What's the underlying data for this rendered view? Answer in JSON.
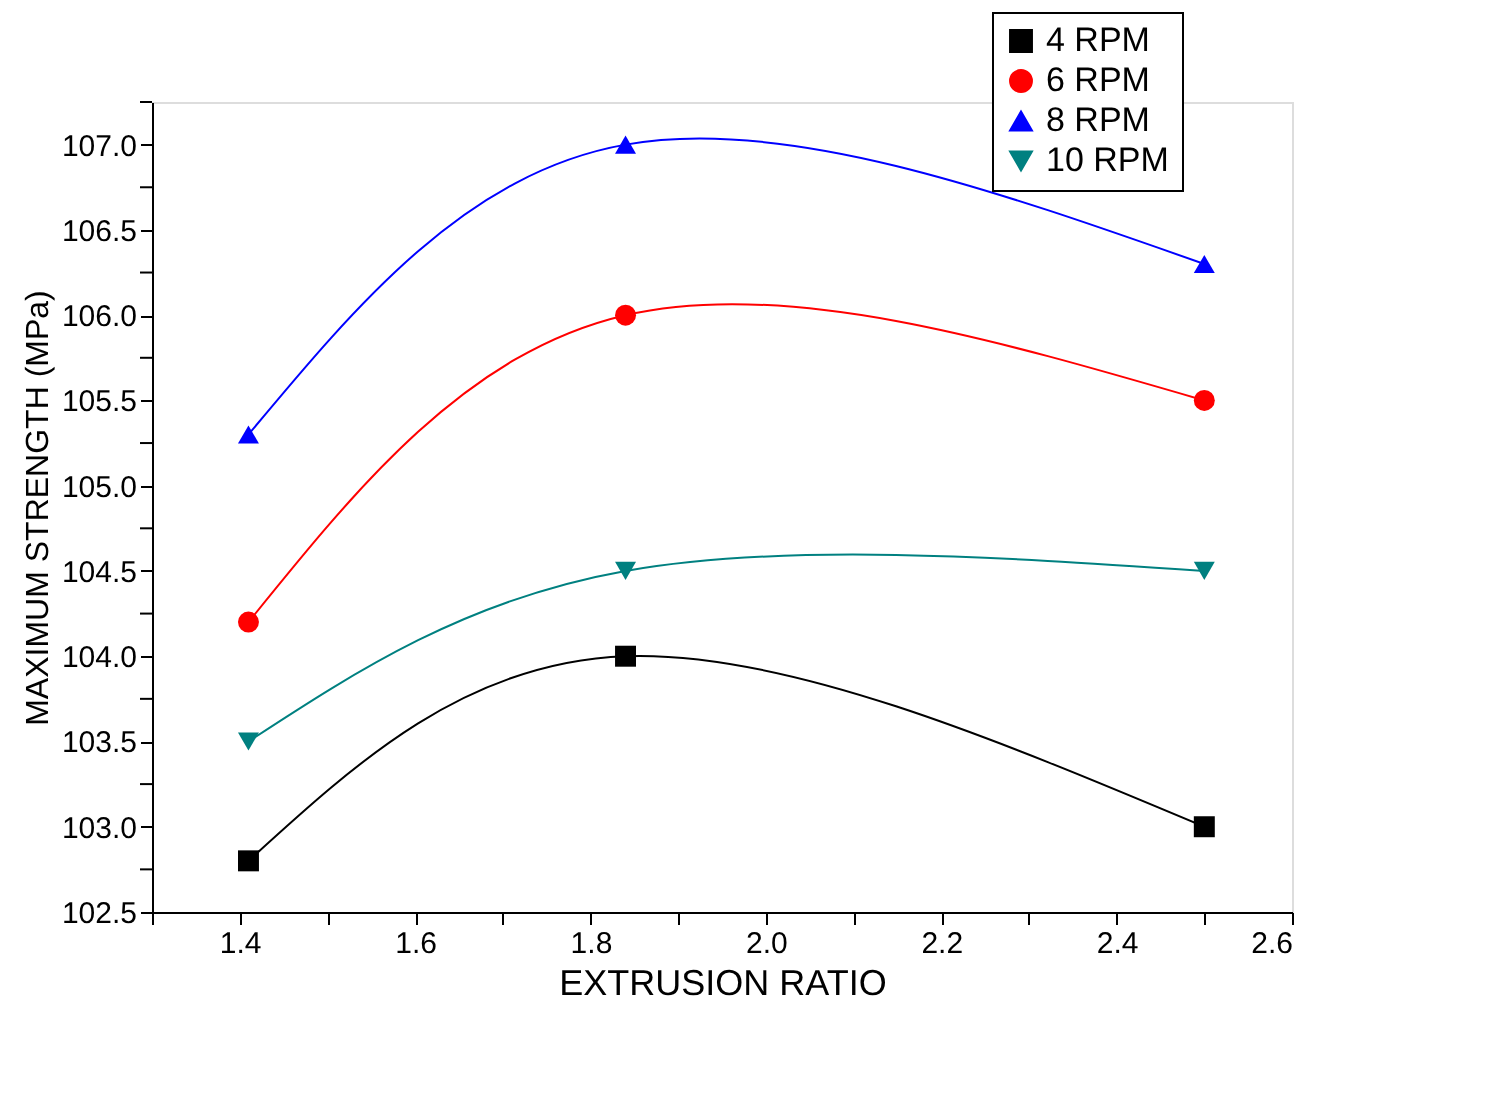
{
  "chart_data": {
    "type": "line",
    "xlabel": "EXTRUSION RATIO",
    "ylabel": "MAXIMUM STRENGTH (MPa)",
    "x": [
      1.41,
      1.84,
      2.5
    ],
    "series": [
      {
        "name": "4 RPM",
        "color": "#000000",
        "marker": "square",
        "values": [
          102.8,
          104.0,
          103.0
        ]
      },
      {
        "name": "6 RPM",
        "color": "#ff0000",
        "marker": "circle",
        "values": [
          104.2,
          106.0,
          105.5
        ]
      },
      {
        "name": "8 RPM",
        "color": "#0000ff",
        "marker": "triangle",
        "values": [
          105.3,
          107.0,
          106.3
        ]
      },
      {
        "name": "10 RPM",
        "color": "#008080",
        "marker": "triangle-down",
        "values": [
          103.5,
          104.5,
          104.5
        ]
      }
    ],
    "xlim": [
      1.3,
      2.6
    ],
    "xticks": [
      {
        "value": 1.3,
        "label": null
      },
      1.4,
      {
        "value": 1.5,
        "label": null
      },
      1.6,
      {
        "value": 1.7,
        "label": null
      },
      1.8,
      {
        "value": 1.9,
        "label": null
      },
      {
        "value": 2.0,
        "label": "2.0"
      },
      {
        "value": 2.1,
        "label": null
      },
      2.2,
      {
        "value": 2.3,
        "label": null
      },
      2.4,
      {
        "value": 2.5,
        "label": null
      },
      2.6
    ],
    "ylim": [
      102.5,
      107.25
    ],
    "yticks": [
      102.5,
      {
        "value": 102.75,
        "label": null
      },
      {
        "value": 103,
        "label": "103.0"
      },
      {
        "value": 103.25,
        "label": null
      },
      103.5,
      {
        "value": 103.75,
        "label": null
      },
      {
        "value": 104,
        "label": "104.0"
      },
      {
        "value": 104.25,
        "label": null
      },
      104.5,
      {
        "value": 104.75,
        "label": null
      },
      {
        "value": 105,
        "label": "105.0"
      },
      {
        "value": 105.25,
        "label": null
      },
      105.5,
      {
        "value": 105.75,
        "label": null
      },
      {
        "value": 106,
        "label": "106.0"
      },
      {
        "value": 106.25,
        "label": null
      },
      106.5,
      {
        "value": 106.75,
        "label": null
      },
      {
        "value": 107,
        "label": "107.0"
      },
      {
        "value": 107.25,
        "label": null
      }
    ],
    "grid": false,
    "legend": "top right"
  }
}
